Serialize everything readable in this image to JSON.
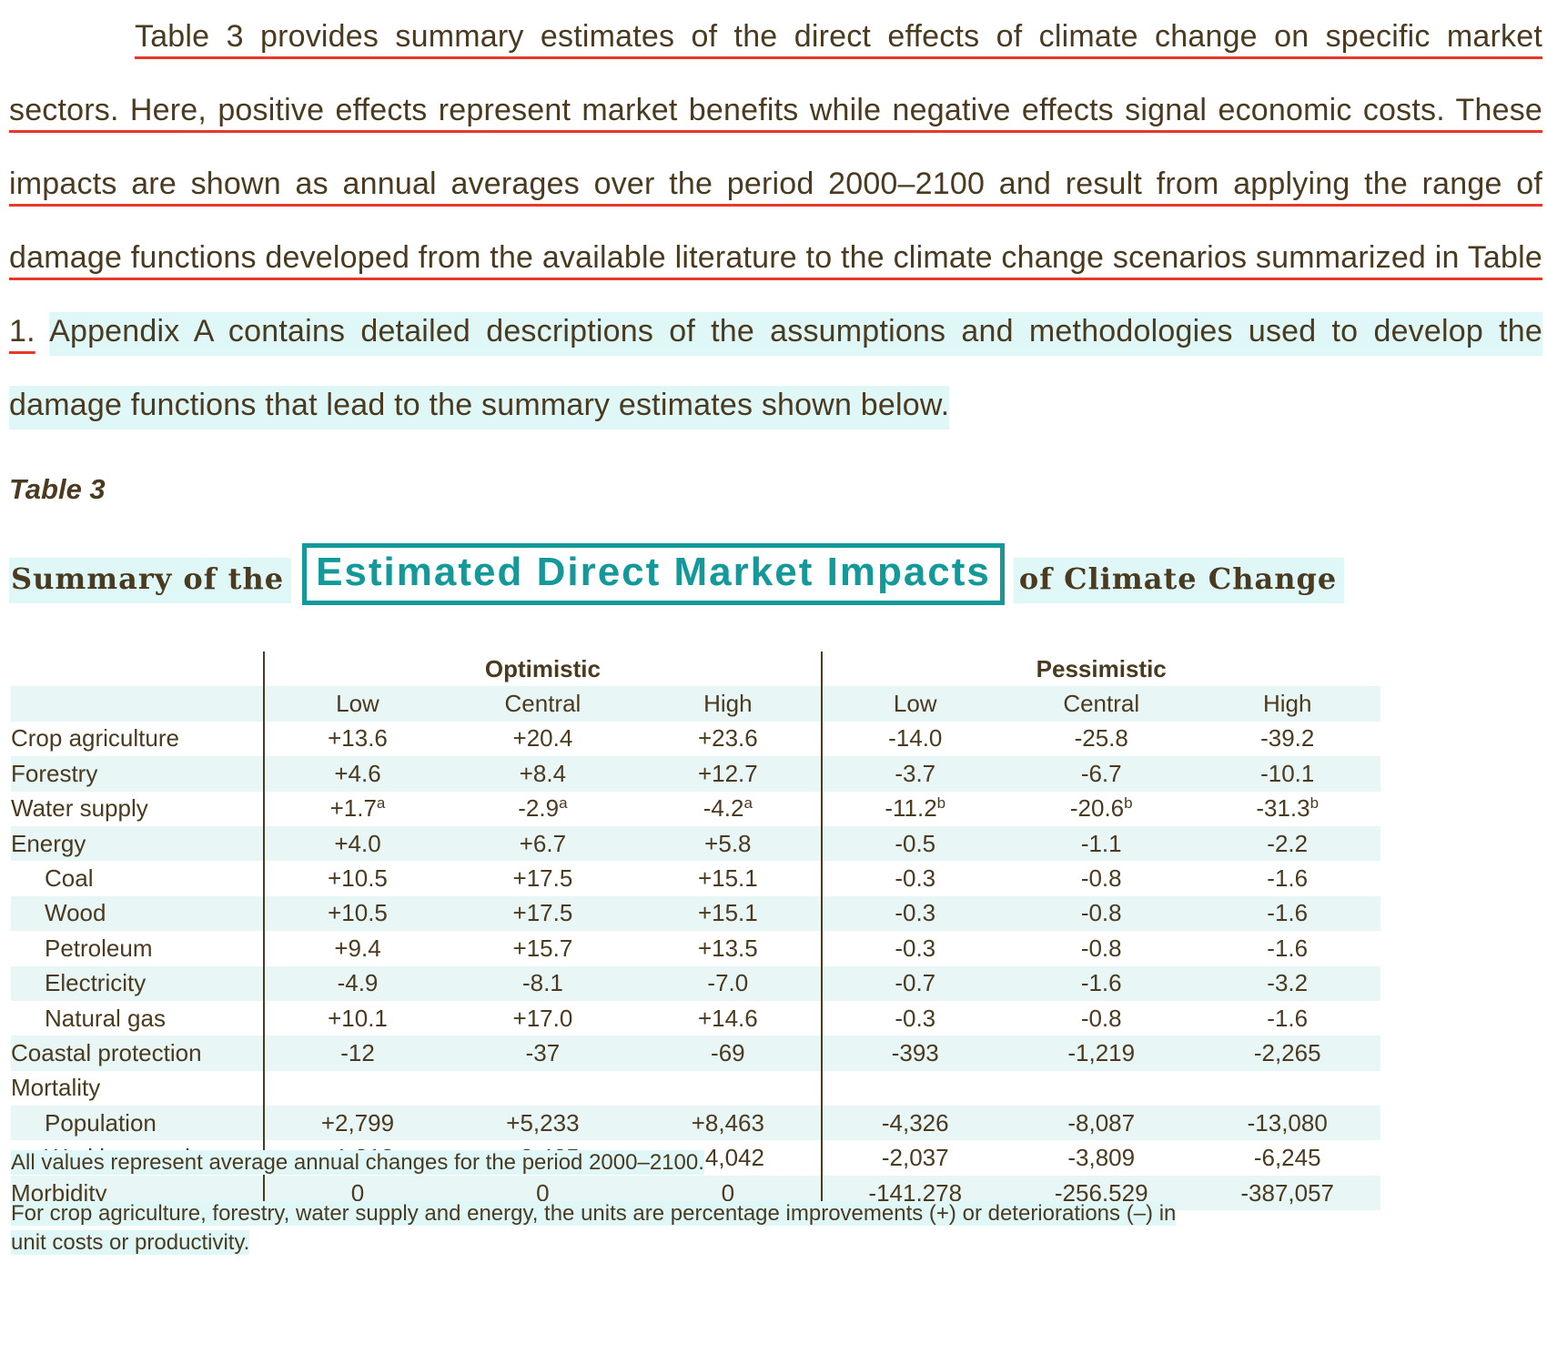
{
  "paragraph": {
    "underlined": "Table 3 provides summary estimates of the direct effects of climate change on specific market sectors. Here, positive effects represent market benefits while negative effects signal economic costs. These impacts are shown as annual averages over the period 2000–2100 and result from applying the range of damage functions developed from the available literature to the climate change scenarios summarized in Table 1.",
    "highlighted": "Appendix A contains detailed descriptions of the assumptions and methodologies used to develop the damage functions that lead to the summary estimates shown below."
  },
  "table_label": "Table 3",
  "title": {
    "prefix": "Summary of the",
    "boxed": "Estimated Direct Market Impacts",
    "suffix": "of Climate Change"
  },
  "table": {
    "groups": [
      "Optimistic",
      "Pessimistic"
    ],
    "columns": [
      "Low",
      "Central",
      "High",
      "Low",
      "Central",
      "High"
    ],
    "rows": [
      {
        "label": "Crop agriculture",
        "indent": false,
        "values": [
          "+13.6",
          "+20.4",
          "+23.6",
          "-14.0",
          "-25.8",
          "-39.2"
        ],
        "marks": [
          "",
          "",
          "",
          "",
          "",
          ""
        ]
      },
      {
        "label": "Forestry",
        "indent": false,
        "values": [
          "+4.6",
          "+8.4",
          "+12.7",
          "-3.7",
          "-6.7",
          "-10.1"
        ],
        "marks": [
          "",
          "",
          "",
          "",
          "",
          ""
        ]
      },
      {
        "label": "Water supply",
        "indent": false,
        "values": [
          "+1.7",
          "-2.9",
          "-4.2",
          "-11.2",
          "-20.6",
          "-31.3"
        ],
        "marks": [
          "a",
          "a",
          "a",
          "b",
          "b",
          "b"
        ]
      },
      {
        "label": "Energy",
        "indent": false,
        "values": [
          "+4.0",
          "+6.7",
          "+5.8",
          "-0.5",
          "-1.1",
          "-2.2"
        ],
        "marks": [
          "",
          "",
          "",
          "",
          "",
          ""
        ]
      },
      {
        "label": "Coal",
        "indent": true,
        "values": [
          "+10.5",
          "+17.5",
          "+15.1",
          "-0.3",
          "-0.8",
          "-1.6"
        ],
        "marks": [
          "",
          "",
          "",
          "",
          "",
          ""
        ]
      },
      {
        "label": "Wood",
        "indent": true,
        "values": [
          "+10.5",
          "+17.5",
          "+15.1",
          "-0.3",
          "-0.8",
          "-1.6"
        ],
        "marks": [
          "",
          "",
          "",
          "",
          "",
          ""
        ]
      },
      {
        "label": "Petroleum",
        "indent": true,
        "values": [
          "+9.4",
          "+15.7",
          "+13.5",
          "-0.3",
          "-0.8",
          "-1.6"
        ],
        "marks": [
          "",
          "",
          "",
          "",
          "",
          ""
        ]
      },
      {
        "label": "Electricity",
        "indent": true,
        "values": [
          "-4.9",
          "-8.1",
          "-7.0",
          "-0.7",
          "-1.6",
          "-3.2"
        ],
        "marks": [
          "",
          "",
          "",
          "",
          "",
          ""
        ]
      },
      {
        "label": "Natural gas",
        "indent": true,
        "values": [
          "+10.1",
          "+17.0",
          "+14.6",
          "-0.3",
          "-0.8",
          "-1.6"
        ],
        "marks": [
          "",
          "",
          "",
          "",
          "",
          ""
        ]
      },
      {
        "label": "Coastal protection",
        "indent": false,
        "values": [
          "-12",
          "-37",
          "-69",
          "-393",
          "-1,219",
          "-2,265"
        ],
        "marks": [
          "",
          "",
          "",
          "",
          "",
          ""
        ]
      },
      {
        "label": "Mortality",
        "indent": false,
        "values": [
          "",
          "",
          "",
          "",
          "",
          ""
        ],
        "marks": [
          "",
          "",
          "",
          "",
          "",
          ""
        ]
      },
      {
        "label": "Population",
        "indent": true,
        "values": [
          "+2,799",
          "+5,233",
          "+8,463",
          "-4,326",
          "-8,087",
          "-13,080"
        ],
        "marks": [
          "",
          "",
          "",
          "",
          "",
          ""
        ]
      },
      {
        "label": "Working aged",
        "indent": true,
        "values": [
          "+1,318",
          "+2,465",
          "+4,042",
          "-2,037",
          "-3,809",
          "-6,245"
        ],
        "marks": [
          "",
          "",
          "",
          "",
          "",
          ""
        ]
      },
      {
        "label": "Morbidity",
        "indent": false,
        "values": [
          "0",
          "0",
          "0",
          "-141,278",
          "-256,529",
          "-387,057"
        ],
        "marks": [
          "",
          "",
          "",
          "",
          "",
          ""
        ]
      }
    ]
  },
  "notes": [
    "All values represent average annual changes for the period 2000–2100.",
    "For crop agriculture, forestry, water supply and energy, the units are percentage improvements (+) or deteriorations (–) in unit costs or productivity."
  ],
  "colors": {
    "underline": "#e8382a",
    "highlight": "#dff7f6",
    "accent": "#14999a",
    "text": "#4a3a20"
  }
}
